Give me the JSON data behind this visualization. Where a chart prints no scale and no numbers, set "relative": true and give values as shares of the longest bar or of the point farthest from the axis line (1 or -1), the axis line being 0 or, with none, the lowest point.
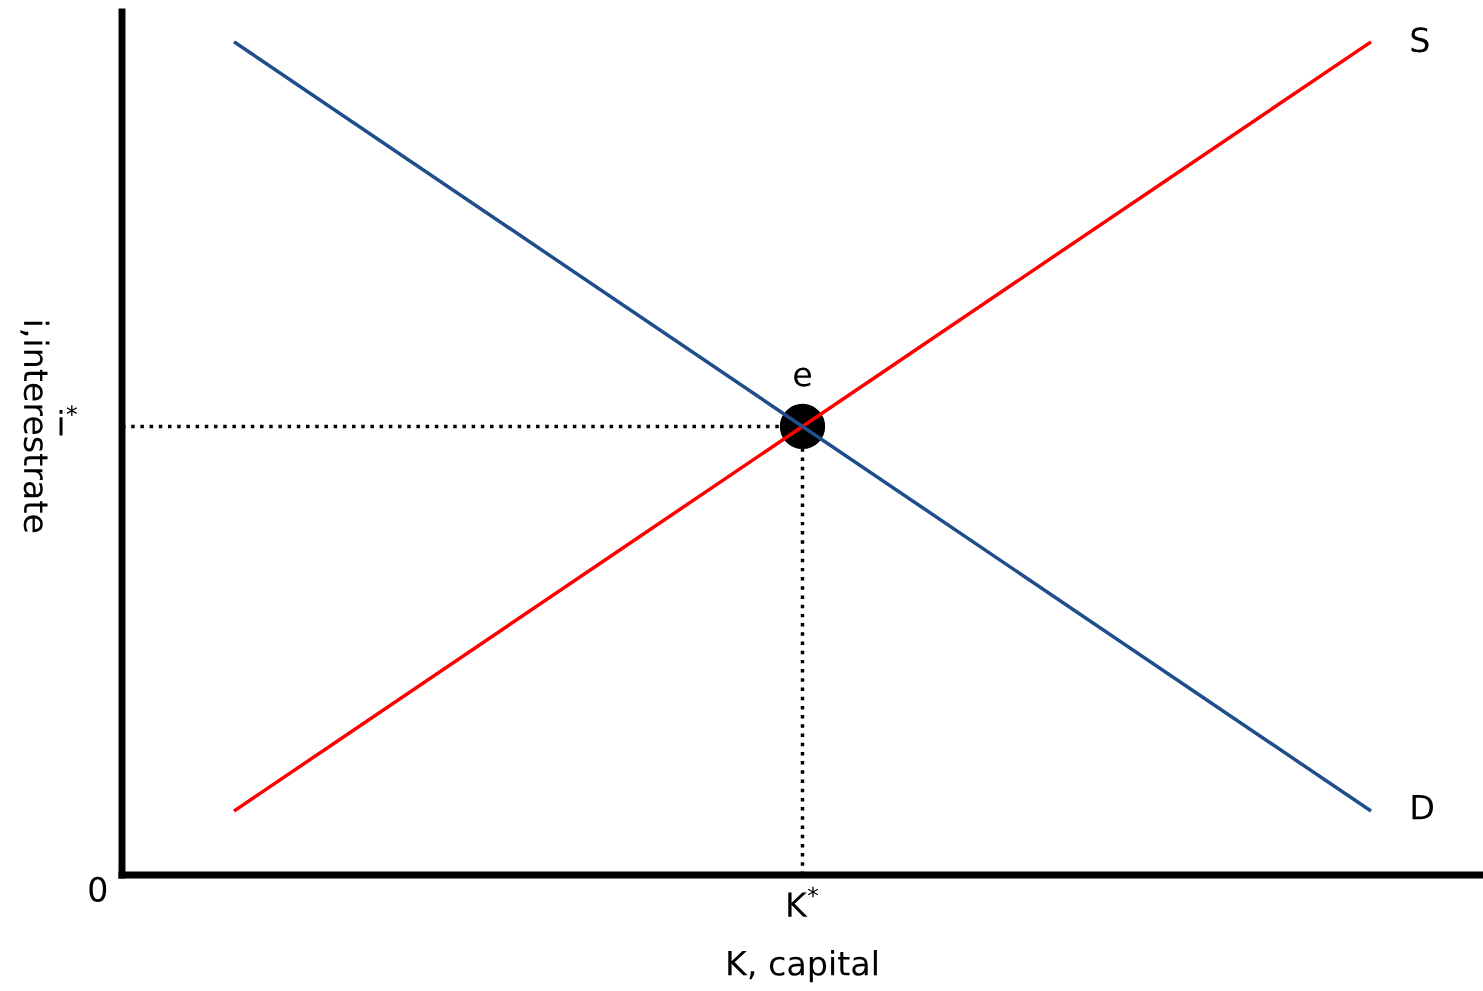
{
  "chart_data": {
    "type": "line",
    "relative": true,
    "xlabel": "K, capital",
    "ylabel": "i,interestrate",
    "categories": [
      null,
      null,
      null
    ],
    "series": [
      {
        "name": "S",
        "color": "#ff0000",
        "values": [
          0.078,
          0.539,
          1
        ]
      },
      {
        "name": "D",
        "color": "#1f4e8c",
        "values": [
          1,
          0.539,
          0.078
        ]
      }
    ],
    "ref_lines": [
      {
        "axis": "y",
        "value": 0.539,
        "label": "i$^{*}$",
        "color": "#000000",
        "line_style": "dotted"
      }
    ],
    "annotations": [
      "0",
      "K$^{*}$",
      {
        "text": "e",
        "y": 0.539
      }
    ],
    "marker": "none"
  }
}
